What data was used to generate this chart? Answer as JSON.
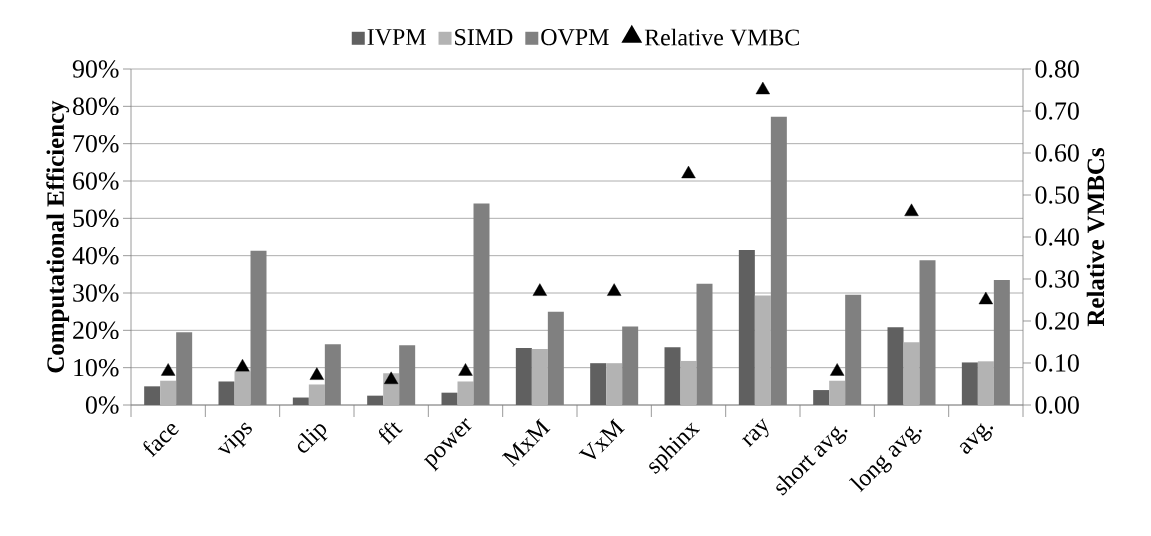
{
  "chart_data": {
    "type": "bar",
    "categories": [
      "face",
      "vips",
      "clip",
      "fft",
      "power",
      "MxM",
      "VxM",
      "sphinx",
      "ray",
      "short avg.",
      "long avg.",
      "avg."
    ],
    "ylabel": "Computational Efficiency",
    "y2label": "Relative VMBCs",
    "ylim": [
      0,
      90
    ],
    "yticks": [
      {
        "value": 0,
        "label": "0%"
      },
      {
        "value": 10,
        "label": "10%"
      },
      {
        "value": 20,
        "label": "20%"
      },
      {
        "value": 30,
        "label": "30%"
      },
      {
        "value": 40,
        "label": "40%"
      },
      {
        "value": 50,
        "label": "50%"
      },
      {
        "value": 60,
        "label": "60%"
      },
      {
        "value": 70,
        "label": "70%"
      },
      {
        "value": 80,
        "label": "80%"
      },
      {
        "value": 90,
        "label": "90%"
      }
    ],
    "y2lim": [
      0,
      0.8
    ],
    "y2ticks": [
      {
        "value": 0,
        "label": "0.00"
      },
      {
        "value": 0.1,
        "label": "0.10"
      },
      {
        "value": 0.2,
        "label": "0.20"
      },
      {
        "value": 0.3,
        "label": "0.30"
      },
      {
        "value": 0.4,
        "label": "0.40"
      },
      {
        "value": 0.5,
        "label": "0.50"
      },
      {
        "value": 0.6,
        "label": "0.60"
      },
      {
        "value": 0.7,
        "label": "0.70"
      },
      {
        "value": 0.8,
        "label": "0.80"
      }
    ],
    "grid": "y",
    "legend": "top",
    "series": [
      {
        "name": "IVPM",
        "color": "#606060",
        "values": [
          5,
          6.3,
          2,
          2.5,
          3.3,
          15.3,
          11.2,
          15.5,
          41.5,
          4,
          20.8,
          11.4
        ]
      },
      {
        "name": "SIMD",
        "color": "#b3b3b3",
        "values": [
          6.5,
          9,
          5.5,
          8.5,
          6.3,
          15,
          11.2,
          11.8,
          29.3,
          6.5,
          16.8,
          11.7
        ]
      },
      {
        "name": "OVPM",
        "color": "#808080",
        "values": [
          19.5,
          41.3,
          16.3,
          16,
          54,
          25,
          21,
          32.5,
          77.2,
          29.5,
          38.8,
          33.5
        ]
      },
      {
        "name": "Relative VMBC",
        "type": "scatter",
        "axis": "y2",
        "marker": "triangle",
        "color": "#000000",
        "values": [
          0.08,
          0.09,
          0.07,
          0.06,
          0.08,
          0.27,
          0.27,
          0.55,
          0.75,
          0.08,
          0.46,
          0.25
        ]
      }
    ]
  }
}
